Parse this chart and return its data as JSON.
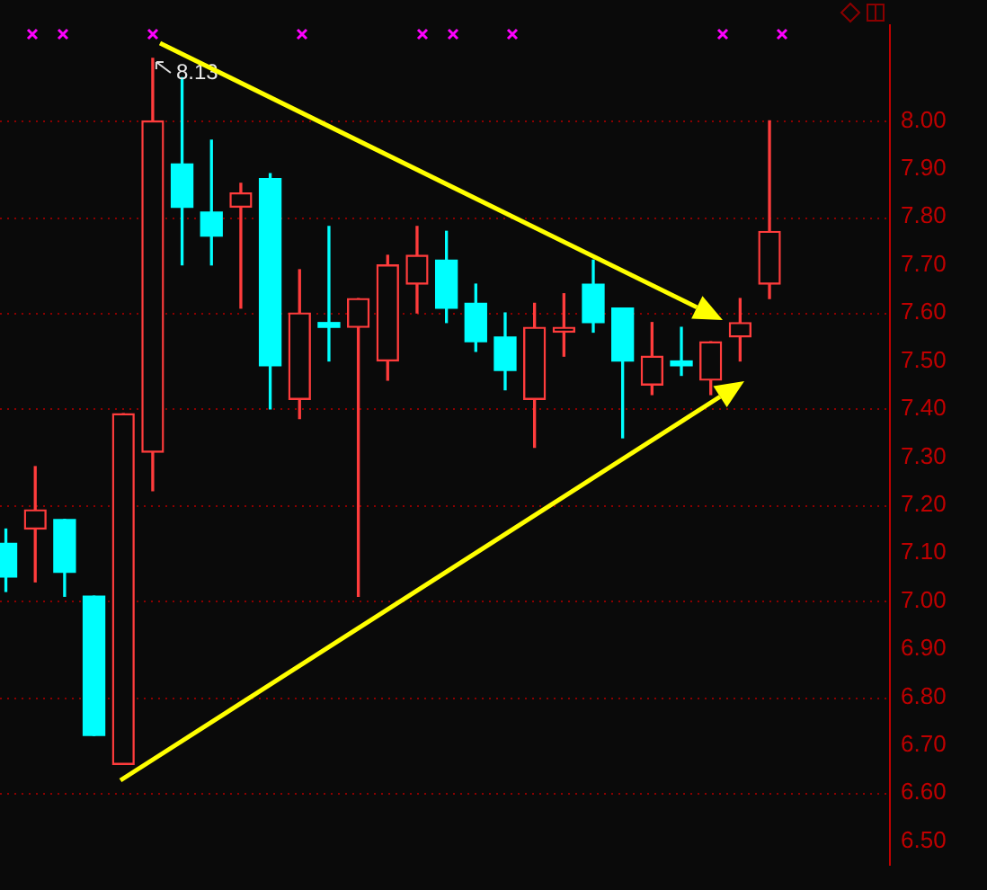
{
  "chart_data": {
    "type": "candlestick",
    "categories": [
      null,
      null,
      null,
      null,
      null,
      null,
      null,
      null,
      null,
      null,
      null,
      null,
      null,
      null,
      null,
      null,
      null,
      null,
      null,
      null,
      null,
      null,
      null,
      null,
      null,
      null,
      null
    ],
    "ohlc": [
      [
        7.12,
        7.15,
        7.02,
        7.05
      ],
      [
        7.15,
        7.28,
        7.04,
        7.19
      ],
      [
        7.17,
        7.17,
        7.01,
        7.06
      ],
      [
        7.01,
        7.01,
        6.72,
        6.72
      ],
      [
        6.66,
        7.39,
        6.66,
        7.39
      ],
      [
        7.31,
        8.13,
        7.23,
        8.0
      ],
      [
        7.91,
        8.09,
        7.7,
        7.82
      ],
      [
        7.81,
        7.96,
        7.7,
        7.76
      ],
      [
        7.82,
        7.87,
        7.61,
        7.85
      ],
      [
        7.88,
        7.89,
        7.4,
        7.49
      ],
      [
        7.42,
        7.69,
        7.38,
        7.6
      ],
      [
        7.58,
        7.78,
        7.5,
        7.57
      ],
      [
        7.57,
        7.63,
        7.01,
        7.63
      ],
      [
        7.5,
        7.72,
        7.46,
        7.7
      ],
      [
        7.66,
        7.78,
        7.6,
        7.72
      ],
      [
        7.71,
        7.77,
        7.58,
        7.61
      ],
      [
        7.62,
        7.66,
        7.52,
        7.54
      ],
      [
        7.55,
        7.6,
        7.44,
        7.48
      ],
      [
        7.42,
        7.62,
        7.32,
        7.57
      ],
      [
        7.56,
        7.64,
        7.51,
        7.57
      ],
      [
        7.66,
        7.71,
        7.56,
        7.58
      ],
      [
        7.61,
        7.61,
        7.34,
        7.5
      ],
      [
        7.45,
        7.58,
        7.43,
        7.51
      ],
      [
        7.5,
        7.57,
        7.47,
        7.49
      ],
      [
        7.46,
        7.54,
        7.43,
        7.54
      ],
      [
        7.55,
        7.63,
        7.5,
        7.58
      ],
      [
        7.66,
        8.0,
        7.63,
        7.77
      ]
    ],
    "colors": [
      "#00ffff",
      "#ff3c3c",
      "#00ffff",
      "#00ffff",
      "#ff3c3c",
      "#ff3c3c",
      "#00ffff",
      "#00ffff",
      "#ff3c3c",
      "#00ffff",
      "#ff3c3c",
      "#00ffff",
      "#ff3c3c",
      "#ff3c3c",
      "#ff3c3c",
      "#00ffff",
      "#00ffff",
      "#00ffff",
      "#ff3c3c",
      "#ff3c3c",
      "#00ffff",
      "#00ffff",
      "#ff3c3c",
      "#00ffff",
      "#ff3c3c",
      "#ff3c3c",
      "#ff3c3c"
    ],
    "ylim": [
      6.45,
      8.2
    ],
    "yticks": [
      {
        "value": 6.5,
        "label": "6.50"
      },
      {
        "value": 6.6,
        "label": "6.60"
      },
      {
        "value": 6.7,
        "label": "6.70"
      },
      {
        "value": 6.8,
        "label": "6.80"
      },
      {
        "value": 6.9,
        "label": "6.90"
      },
      {
        "value": 7.0,
        "label": "7.00"
      },
      {
        "value": 7.1,
        "label": "7.10"
      },
      {
        "value": 7.2,
        "label": "7.20"
      },
      {
        "value": 7.3,
        "label": "7.30"
      },
      {
        "value": 7.4,
        "label": "7.40"
      },
      {
        "value": 7.5,
        "label": "7.50"
      },
      {
        "value": 7.6,
        "label": "7.60"
      },
      {
        "value": 7.7,
        "label": "7.70"
      },
      {
        "value": 7.8,
        "label": "7.80"
      },
      {
        "value": 7.9,
        "label": "7.90"
      },
      {
        "value": 8.0,
        "label": "8.00"
      }
    ],
    "grid": "y",
    "legend": false,
    "annotations": [
      "8.13"
    ]
  }
}
